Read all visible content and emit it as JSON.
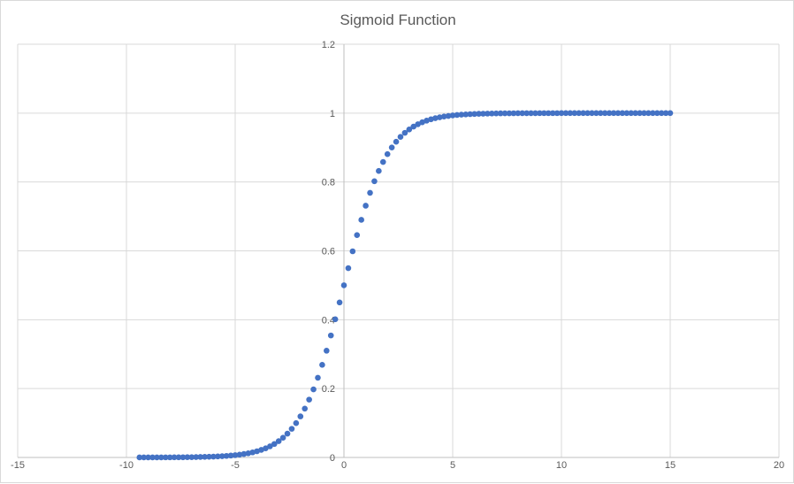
{
  "chart_data": {
    "type": "scatter",
    "title": "Sigmoid Function",
    "xlabel": "",
    "ylabel": "",
    "xlim": [
      -15,
      20
    ],
    "ylim": [
      0,
      1.2
    ],
    "x_ticks": [
      "-15",
      "-10",
      "-5",
      "0",
      "5",
      "10",
      "15",
      "20"
    ],
    "y_ticks": [
      "0",
      "0.2",
      "0.4",
      "0.6",
      "0.8",
      "1",
      "1.2"
    ],
    "grid": true,
    "legend": "none",
    "marker_color": "#4472c4",
    "series": [
      {
        "x": [
          -9.4,
          -9.2,
          -9.0,
          -8.8,
          -8.6,
          -8.4,
          -8.2,
          -8.0,
          -7.8,
          -7.6,
          -7.4,
          -7.2,
          -7.0,
          -6.8,
          -6.6,
          -6.4,
          -6.2,
          -6.0,
          -5.8,
          -5.6,
          -5.4,
          -5.2,
          -5.0,
          -4.8,
          -4.6,
          -4.4,
          -4.2,
          -4.0,
          -3.8,
          -3.6,
          -3.4,
          -3.2,
          -3.0,
          -2.8,
          -2.6,
          -2.4,
          -2.2,
          -2.0,
          -1.8,
          -1.6,
          -1.4,
          -1.2,
          -1.0,
          -0.8,
          -0.6,
          -0.4,
          -0.2,
          0.0,
          0.2,
          0.4,
          0.6,
          0.8,
          1.0,
          1.2,
          1.4,
          1.6,
          1.8,
          2.0,
          2.2,
          2.4,
          2.6,
          2.8,
          3.0,
          3.2,
          3.4,
          3.6,
          3.8,
          4.0,
          4.2,
          4.4,
          4.6,
          4.8,
          5.0,
          5.2,
          5.4,
          5.6,
          5.8,
          6.0,
          6.2,
          6.4,
          6.6,
          6.8,
          7.0,
          7.2,
          7.4,
          7.6,
          7.8,
          8.0,
          8.2,
          8.4,
          8.6,
          8.8,
          9.0,
          9.2,
          9.4,
          9.6,
          9.8,
          10.0,
          10.2,
          10.4,
          10.6,
          10.8,
          11.0,
          11.2,
          11.4,
          11.6,
          11.8,
          12.0,
          12.2,
          12.4,
          12.6,
          12.8,
          13.0,
          13.2,
          13.4,
          13.6,
          13.8,
          14.0,
          14.2,
          14.4,
          14.6,
          14.8,
          15.0
        ],
        "y": [
          0.0001,
          0.0001,
          0.0001,
          0.0002,
          0.0002,
          0.0002,
          0.0003,
          0.0003,
          0.0004,
          0.0005,
          0.0006,
          0.0007,
          0.0009,
          0.0011,
          0.0014,
          0.0017,
          0.002,
          0.0025,
          0.003,
          0.0037,
          0.0045,
          0.0055,
          0.0067,
          0.0082,
          0.01,
          0.0121,
          0.0148,
          0.018,
          0.0219,
          0.0266,
          0.0323,
          0.0392,
          0.0474,
          0.0573,
          0.0691,
          0.0832,
          0.0998,
          0.1192,
          0.1419,
          0.168,
          0.1978,
          0.2315,
          0.2689,
          0.31,
          0.3543,
          0.4013,
          0.4502,
          0.5,
          0.5498,
          0.5987,
          0.6457,
          0.69,
          0.7311,
          0.7685,
          0.8022,
          0.832,
          0.8581,
          0.8808,
          0.9002,
          0.9168,
          0.9309,
          0.9427,
          0.9526,
          0.9608,
          0.9677,
          0.9734,
          0.9781,
          0.982,
          0.9852,
          0.9879,
          0.99,
          0.9918,
          0.9933,
          0.9945,
          0.9955,
          0.9963,
          0.997,
          0.9975,
          0.998,
          0.9983,
          0.9986,
          0.9989,
          0.9991,
          0.9993,
          0.9994,
          0.9995,
          0.9996,
          0.9997,
          0.9997,
          0.9998,
          0.9998,
          0.9998,
          0.9999,
          0.9999,
          0.9999,
          0.9999,
          0.9999,
          1.0,
          1.0,
          1.0,
          1.0,
          1.0,
          1.0,
          1.0,
          1.0,
          1.0,
          1.0,
          1.0,
          1.0,
          1.0,
          1.0,
          1.0,
          1.0,
          1.0,
          1.0,
          1.0,
          1.0,
          1.0,
          1.0,
          1.0,
          1.0,
          1.0,
          1.0
        ]
      }
    ]
  }
}
